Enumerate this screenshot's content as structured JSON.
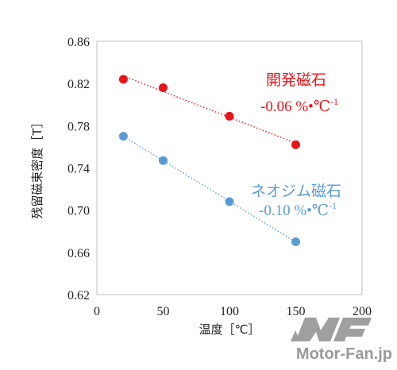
{
  "chart_data": {
    "type": "scatter",
    "xlabel": "温度［℃］",
    "ylabel": "残留磁束密度［T］",
    "xlim": [
      0,
      200
    ],
    "ylim": [
      0.62,
      0.86
    ],
    "xticks": [
      "0",
      "50",
      "100",
      "150",
      "200"
    ],
    "yticks": [
      "0.62",
      "0.66",
      "0.70",
      "0.74",
      "0.78",
      "0.82",
      "0.86"
    ],
    "grid": false,
    "series": [
      {
        "name": "開発磁石",
        "coefficient": "-0.06 %•℃",
        "coefficient_sup": "-1",
        "color": "#e8141b",
        "trendline": "dotted",
        "x": [
          20,
          50,
          100,
          150
        ],
        "y": [
          0.824,
          0.816,
          0.789,
          0.762
        ]
      },
      {
        "name": "ネオジム磁石",
        "coefficient": "-0.10 %•℃",
        "coefficient_sup": "-1",
        "color": "#5b9bd5",
        "trendline": "dotted",
        "x": [
          20,
          50,
          100,
          150
        ],
        "y": [
          0.77,
          0.747,
          0.708,
          0.67
        ]
      }
    ]
  },
  "watermark": {
    "logo_text": "MF",
    "site_text": "Motor-Fan.jp"
  }
}
